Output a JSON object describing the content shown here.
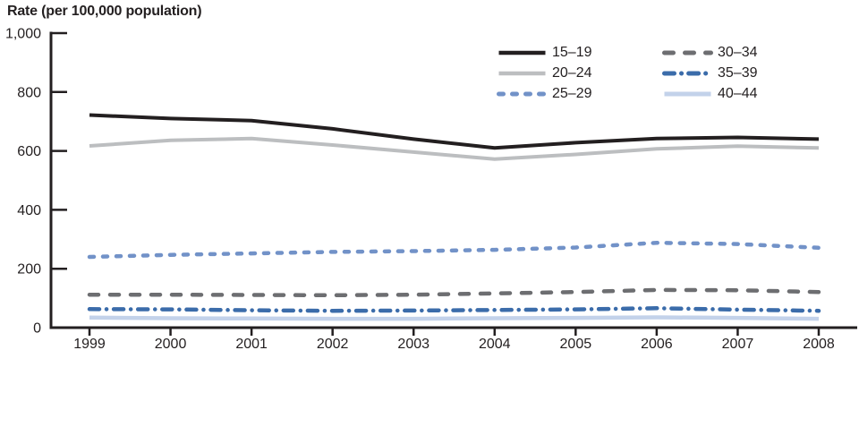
{
  "figure": {
    "title": "Rate (per 100,000 population)"
  },
  "chart_data": {
    "type": "line",
    "title": "Rate (per 100,000 population)",
    "xlabel": "",
    "ylabel": "Rate (per 100,000 population)",
    "x": [
      "1999",
      "2000",
      "2001",
      "2002",
      "2003",
      "2004",
      "2005",
      "2006",
      "2007",
      "2008"
    ],
    "ylim": [
      0,
      1000
    ],
    "yticks": [
      0,
      200,
      400,
      600,
      800,
      1000
    ],
    "ytick_labels": [
      "0",
      "200",
      "400",
      "600",
      "800",
      "1,000"
    ],
    "grid": false,
    "legend_position": "top-right-inside",
    "legend_columns": 2,
    "axis_color": "#231f20",
    "series": [
      {
        "name": "15–19",
        "color": "#231f20",
        "line_style": "solid",
        "stroke_width": 4,
        "values": [
          722,
          710,
          703,
          675,
          640,
          610,
          628,
          642,
          646,
          640
        ]
      },
      {
        "name": "20–24",
        "color": "#bcbec0",
        "line_style": "solid",
        "stroke_width": 4,
        "values": [
          617,
          636,
          642,
          620,
          596,
          572,
          588,
          607,
          616,
          610
        ]
      },
      {
        "name": "25–29",
        "color": "#7292c8",
        "line_style": "dashed",
        "stroke_width": 4.5,
        "values": [
          240,
          247,
          252,
          257,
          260,
          264,
          272,
          288,
          284,
          271
        ]
      },
      {
        "name": "30–34",
        "color": "#6d6e71",
        "line_style": "long-dash",
        "stroke_width": 4.5,
        "values": [
          112,
          112,
          111,
          110,
          112,
          116,
          121,
          128,
          127,
          121
        ]
      },
      {
        "name": "35–39",
        "color": "#3b6caa",
        "line_style": "dash-dot",
        "stroke_width": 4.5,
        "values": [
          63,
          62,
          59,
          57,
          58,
          60,
          62,
          66,
          61,
          57
        ]
      },
      {
        "name": "40–44",
        "color": "#c3d2ea",
        "line_style": "solid",
        "stroke_width": 4.5,
        "values": [
          34,
          32,
          31,
          30,
          30,
          32,
          33,
          35,
          33,
          30
        ]
      }
    ]
  }
}
